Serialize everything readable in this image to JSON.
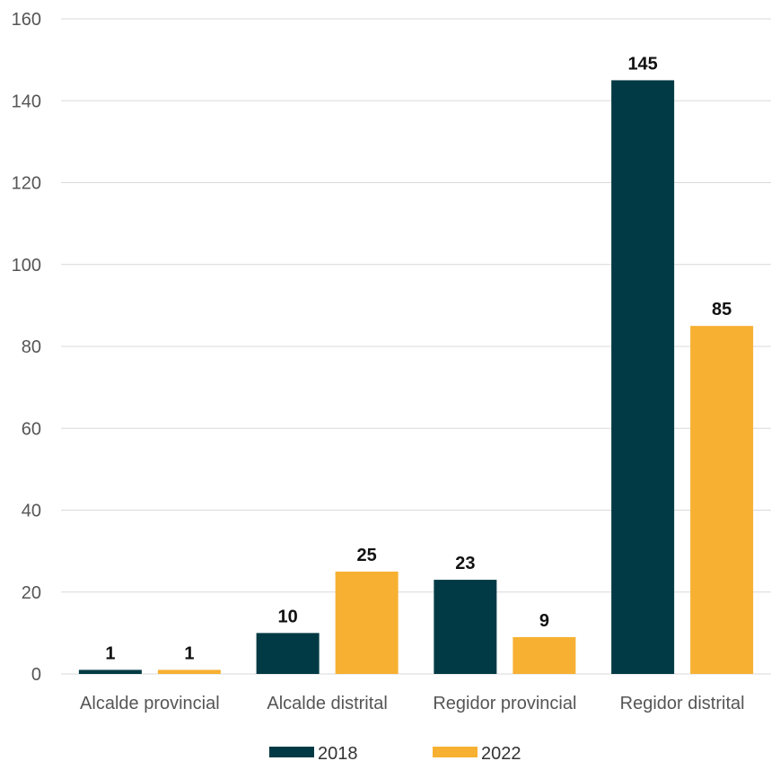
{
  "chart_data": {
    "type": "bar",
    "categories": [
      "Alcalde provincial",
      "Alcalde distrital",
      "Regidor provincial",
      "Regidor distrital"
    ],
    "series": [
      {
        "name": "2018",
        "values": [
          1,
          10,
          23,
          145
        ],
        "color": "#013a44"
      },
      {
        "name": "2022",
        "values": [
          1,
          25,
          9,
          85
        ],
        "color": "#f7b032"
      }
    ],
    "title": "",
    "xlabel": "",
    "ylabel": "",
    "ylim": [
      0,
      160
    ],
    "yticks": [
      "0",
      "20",
      "40",
      "60",
      "80",
      "100",
      "120",
      "140",
      "160"
    ],
    "grid": true,
    "legend": "bottom"
  }
}
